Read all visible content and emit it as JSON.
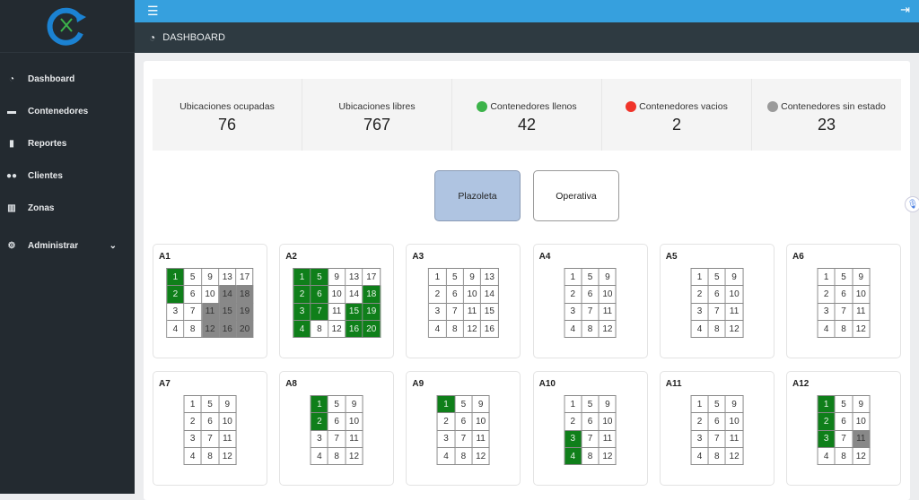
{
  "sidebar": {
    "items": [
      {
        "label": "Dashboard",
        "icon": "tachometer-icon"
      },
      {
        "label": "Contenedores",
        "icon": "box-icon"
      },
      {
        "label": "Reportes",
        "icon": "file-icon"
      },
      {
        "label": "Clientes",
        "icon": "users-icon"
      },
      {
        "label": "Zonas",
        "icon": "map-icon"
      },
      {
        "label": "Administrar",
        "icon": "gear-icon"
      }
    ]
  },
  "header": {
    "title": "DASHBOARD"
  },
  "stats": [
    {
      "label": "Ubicaciones ocupadas",
      "value": "76"
    },
    {
      "label": "Ubicaciones libres",
      "value": "767"
    },
    {
      "label": "Contenedores llenos",
      "value": "42",
      "dot": "#3cb34a"
    },
    {
      "label": "Contenedores vacios",
      "value": "2",
      "dot": "#f0342a"
    },
    {
      "label": "Contenedores sin estado",
      "value": "23",
      "dot": "#9a9a9a"
    }
  ],
  "buttons": {
    "plazoleta": "Plazoleta",
    "operativa": "Operativa"
  },
  "colors": {
    "full": "#0f7f1a",
    "no_state": "#888888",
    "topbar": "#36a0de",
    "sidebar": "#232a30"
  },
  "zones": [
    {
      "name": "A1",
      "cells": 20,
      "full": [
        1,
        2
      ],
      "no_state": [
        11,
        12,
        14,
        15,
        16,
        18,
        19,
        20
      ]
    },
    {
      "name": "A2",
      "cells": 20,
      "full": [
        1,
        2,
        3,
        4,
        5,
        6,
        7,
        15,
        16,
        18,
        19,
        20
      ],
      "no_state": []
    },
    {
      "name": "A3",
      "cells": 16,
      "full": [],
      "no_state": []
    },
    {
      "name": "A4",
      "cells": 12,
      "full": [],
      "no_state": []
    },
    {
      "name": "A5",
      "cells": 12,
      "full": [],
      "no_state": []
    },
    {
      "name": "A6",
      "cells": 12,
      "full": [],
      "no_state": []
    },
    {
      "name": "A7",
      "cells": 12,
      "full": [],
      "no_state": []
    },
    {
      "name": "A8",
      "cells": 12,
      "full": [
        1,
        2
      ],
      "no_state": []
    },
    {
      "name": "A9",
      "cells": 12,
      "full": [
        1
      ],
      "no_state": []
    },
    {
      "name": "A10",
      "cells": 12,
      "full": [
        3,
        4
      ],
      "no_state": []
    },
    {
      "name": "A11",
      "cells": 12,
      "full": [],
      "no_state": []
    },
    {
      "name": "A12",
      "cells": 12,
      "full": [
        1,
        2,
        3
      ],
      "no_state": [
        11
      ]
    }
  ]
}
